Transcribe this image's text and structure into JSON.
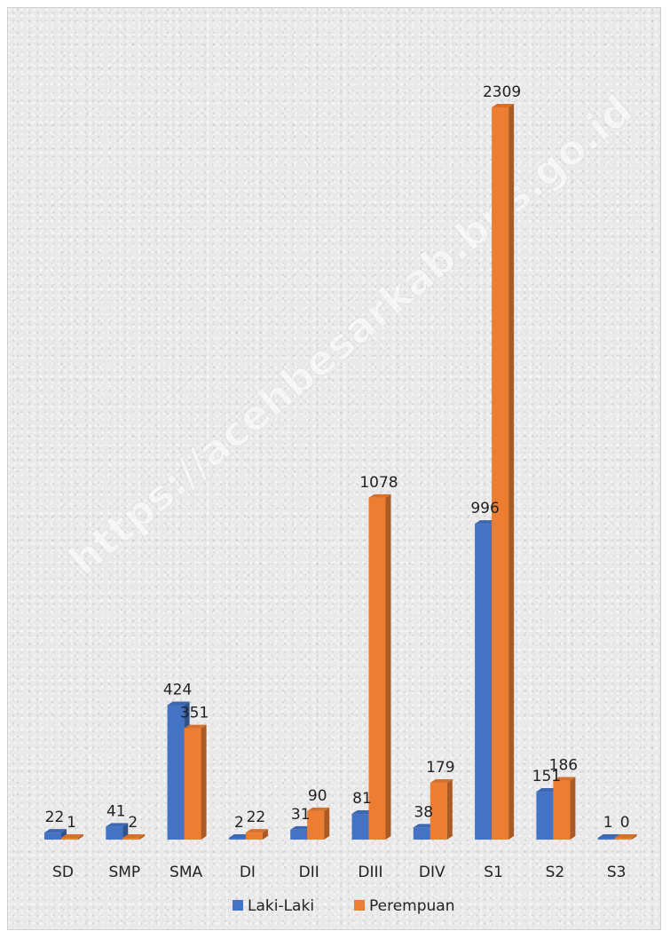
{
  "watermark": "https://acehbesarkab.bps.go.id",
  "chart_data": {
    "type": "bar",
    "categories": [
      "SD",
      "SMP",
      "SMA",
      "DI",
      "DII",
      "DIII",
      "DIV",
      "S1",
      "S2",
      "S3"
    ],
    "series": [
      {
        "name": "Laki-Laki",
        "values": [
          22,
          41,
          424,
          2,
          31,
          81,
          38,
          996,
          151,
          1
        ],
        "color": "#4472C4"
      },
      {
        "name": "Perempuan",
        "values": [
          1,
          2,
          351,
          22,
          90,
          1078,
          179,
          2309,
          186,
          0
        ],
        "color": "#ED7D31"
      }
    ],
    "legend_position": "bottom",
    "grid": false,
    "ylim": [
      0,
      2309
    ],
    "style": "3d-clustered-column"
  }
}
